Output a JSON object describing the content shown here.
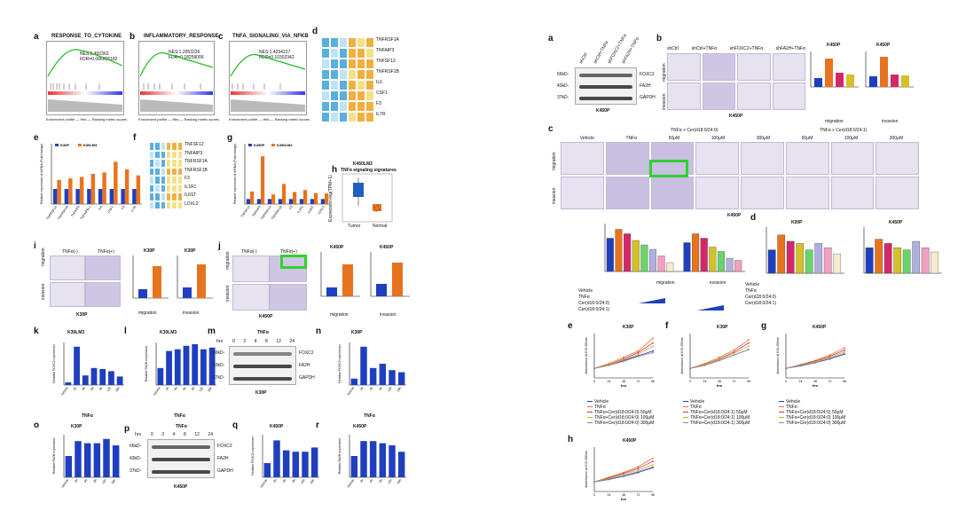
{
  "left": {
    "panels": {
      "a": {
        "label": "a",
        "title": "RESPONSE_TO_CYTOKINE",
        "nes": "NES:2.492363",
        "fdr": "FDR=0.006656182"
      },
      "b": {
        "label": "b",
        "title": "INFLAMMATORY_RESPONSE",
        "nes": "NES:1.2053226",
        "fdr": "FDR=0.18259006"
      },
      "c": {
        "label": "c",
        "title": "TNFA_SIGNALING_VIA_NFKB",
        "nes": "NES:1.4234217",
        "fdr": "FDR=0.10302342"
      },
      "d": {
        "label": "d",
        "genes": [
          "TNFRSF1A",
          "TNFAIP3",
          "TNFSF13",
          "TNFRSF1B",
          "IL6",
          "CSF1",
          "F3",
          "IL7R"
        ]
      },
      "e": {
        "label": "e",
        "legend": [
          "K30P",
          "K30LM3"
        ],
        "ylabel": "Relative expression of mRNA (Fold change)",
        "genes": [
          "TNFRSF1A",
          "TNFRSF1B",
          "TNFAIP3",
          "TNFAIP8L1",
          "IL6",
          "CSF1",
          "F3",
          "IL7R"
        ]
      },
      "f": {
        "label": "f",
        "genes": [
          "TNFSF12",
          "TNFAIP3",
          "TNFRSF1A",
          "TNFRSF1B",
          "F3",
          "IL1R1",
          "IL6ST",
          "LOXL2"
        ]
      },
      "g": {
        "label": "g",
        "legend": [
          "K450P",
          "K450LM2"
        ],
        "ylabel": "Relative expression of mRNA (Fold change)",
        "genes": [
          "TNFSF12",
          "TNFAIP3",
          "TNFRSF1A",
          "TNFRSF1B",
          "F3",
          "IL1R1",
          "IL6ST",
          "LOXL2"
        ]
      },
      "h": {
        "label": "h",
        "title": "K450LM2",
        "subtitle": "TNFα signaling signatures",
        "ylabel": "Expression-log(TPM+1)",
        "x": [
          "Tumor",
          "Normal"
        ]
      },
      "i": {
        "label": "i",
        "headers": [
          "TNFα(-)",
          "TNFα(+)"
        ],
        "rows": [
          "migration",
          "invasion"
        ],
        "caption": "K30P",
        "chart1": "K30P",
        "chart2": "K30P",
        "xcap1": "migration",
        "xcap2": "invasion",
        "ylabel": "Cell Number per Field",
        "x": [
          "TNFα(-)",
          "TNFα(+)"
        ]
      },
      "j": {
        "label": "j",
        "headers": [
          "TNFα(-)",
          "TNFα(+)"
        ],
        "rows": [
          "migration",
          "invasion"
        ],
        "caption": "K450P",
        "chart1": "K450P",
        "chart2": "K450P",
        "xcap1": "migration",
        "xcap2": "invasion",
        "ylabel": "Cell Number per Field",
        "x": [
          "TNFα(-)",
          "TNFα(+)"
        ]
      },
      "k": {
        "label": "k",
        "title": "K30LM3",
        "ylabel": "Relative FOXC2 expression",
        "xlabel": "TNFα",
        "x": [
          "Vehicle",
          "2h",
          "4h",
          "6h",
          "8h",
          "12h",
          "24h"
        ]
      },
      "l": {
        "label": "l",
        "title": "K30LM3",
        "ylabel": "Relative FA2H expression",
        "xlabel": "TNFα",
        "x": [
          "Vehicle",
          "2h",
          "4h",
          "6h",
          "8h",
          "12h",
          "24h"
        ]
      },
      "m": {
        "label": "m",
        "title": "TNFα",
        "hrs": "hrs",
        "times": [
          "0",
          "2",
          "4",
          "8",
          "12",
          "24"
        ],
        "mw": [
          "66kD-",
          "43kD-",
          "37kD-"
        ],
        "proteins": [
          "FOXC2",
          "FA2H",
          "GAPDH"
        ],
        "caption": "K30P"
      },
      "n": {
        "label": "n",
        "title": "K30P",
        "ylabel": "Relative FOXC2 expression",
        "xlabel": "TNFα",
        "x": [
          "Vehicle",
          "2h",
          "4h",
          "8h",
          "12h",
          "24h"
        ]
      },
      "o": {
        "label": "o",
        "title": "K30P",
        "ylabel": "Relative FA2H expression",
        "xlabel": "TNFα",
        "x": [
          "Vehicle",
          "2h",
          "4h",
          "8h",
          "12h",
          "24h"
        ]
      },
      "p": {
        "label": "p",
        "title": "TNFα",
        "hrs": "hrs",
        "times": [
          "0",
          "2",
          "4",
          "8",
          "12",
          "24"
        ],
        "mw": [
          "66kD-",
          "43kD-",
          "37kD-"
        ],
        "proteins": [
          "FOXC2",
          "FA2H",
          "GAPDH"
        ],
        "caption": "K450P"
      },
      "q": {
        "label": "q",
        "title": "K450P",
        "ylabel": "Relative FOXC2 expression",
        "xlabel": "TNFα",
        "x": [
          "Vehicle",
          "2h",
          "4h",
          "8h",
          "12h",
          "24h"
        ]
      },
      "r": {
        "label": "r",
        "title": "K450P",
        "ylabel": "Relative FA2H expression",
        "xlabel": "TNFα",
        "x": [
          "Vehicle",
          "2h",
          "4h",
          "8h",
          "12h",
          "24h"
        ]
      }
    },
    "gsea_xlabel": "Enrichment profile — Hits — Ranking metric scores"
  },
  "right": {
    "panels": {
      "a": {
        "label": "a",
        "lanes": [
          "shCtrl",
          "shCtrl+TNFα",
          "shFOXC2+TNFα",
          "shFA2H+TNFα"
        ],
        "mw": [
          "66kD-",
          "43kD-",
          "37kD-"
        ],
        "proteins": [
          "FOXC2",
          "FA2H",
          "GAPDH"
        ],
        "caption": "K450P"
      },
      "b": {
        "label": "b",
        "headers": [
          "shCtrl",
          "shCtrl+TNFα",
          "shFOXC2+TNFα",
          "shFA2H+TNFα"
        ],
        "rows": [
          "migration",
          "invasion"
        ],
        "caption": "K450P",
        "chart1": "K450P",
        "chart2": "K450P",
        "xcap1": "migration",
        "xcap2": "invasion",
        "ylabel": "Cell Number per Field"
      },
      "c": {
        "label": "c",
        "top_header": "TNFα + Cer(d18:0/24:0)",
        "top_header2": "TNFα + Cer(d18:0/24:1)",
        "headers": [
          "Vehicle",
          "TNFα",
          "50μM",
          "100μM",
          "300μM",
          "50μM",
          "100μM",
          "300μM"
        ],
        "rows": [
          "migration",
          "invasion"
        ],
        "caption": "K450P",
        "xcap1": "migration",
        "xcap2": "invasion",
        "ylabel": "Cell number per Field",
        "rowlabels": [
          "Vehicle",
          "TNFα",
          "Cer(d18:0/24:0)",
          "Cer(d18:0/24:1)"
        ]
      },
      "d": {
        "label": "d",
        "chart1": "K30P",
        "chart2": "K450P",
        "ylabel": "Number of colonies",
        "rowlabels": [
          "Vehicle",
          "TNFα",
          "Cer(d18:0/24:0)",
          "Cer(d18:0/24:1)"
        ]
      },
      "e": {
        "label": "e",
        "title": "K30P",
        "ylabel": "Absorbance at O.D.450nm",
        "xlabel": "hrs",
        "x": [
          "0",
          "24",
          "48",
          "72",
          "96"
        ],
        "legend": [
          "Vehicle",
          "TNFα",
          "TNFα+Cer(d18:0/24:0) 50μM",
          "TNFα+Cer(d18:0/24:0) 100μM",
          "TNFα+Cer(d18:0/24:0) 300μM"
        ]
      },
      "f": {
        "label": "f",
        "title": "K30P",
        "ylabel": "Absorbance at O.D.450nm",
        "xlabel": "hrs",
        "x": [
          "0",
          "24",
          "48",
          "72",
          "96"
        ],
        "legend": [
          "Vehicle",
          "TNFα",
          "TNFα+Cer(d18:0/24:1) 50μM",
          "TNFα+Cer(d18:0/24:1) 100μM",
          "TNFα+Cer(d18:0/24:1) 300μM"
        ]
      },
      "g": {
        "label": "g",
        "title": "K450P",
        "ylabel": "Absorbance at O.D.450nm",
        "xlabel": "hrs",
        "x": [
          "0",
          "24",
          "48",
          "72",
          "96"
        ],
        "legend": [
          "Vehicle",
          "TNFα",
          "TNFα+Cer(d18:0/24:0) 50μM",
          "TNFα+Cer(d18:0/24:0) 100μM",
          "TNFα+Cer(d18:0/24:0) 300μM"
        ]
      },
      "h": {
        "label": "h",
        "title": "K450P",
        "ylabel": "Absorbance at O.D.450nm",
        "xlabel": "hrs",
        "x": [
          "0",
          "24",
          "48",
          "72",
          "96"
        ]
      }
    }
  },
  "colors": {
    "blue": "#1f3fbf",
    "orange": "#e8731f",
    "green": "#2fd22f",
    "gsea": "#22bb22",
    "heat_low": "#4aa3d8",
    "heat_high": "#f0a030"
  },
  "chart_data": [
    {
      "type": "bar",
      "panel": "left-e",
      "categories": [
        "TNFRSF1A",
        "TNFRSF1B",
        "TNFAIP3",
        "TNFAIP8L1",
        "IL6",
        "CSF1",
        "F3",
        "IL7R"
      ],
      "series": [
        {
          "name": "K30P",
          "values": [
            1,
            1,
            1,
            1,
            1,
            1,
            1,
            1
          ]
        },
        {
          "name": "K30LM3",
          "values": [
            1.6,
            1.7,
            1.8,
            2.0,
            2.1,
            2.8,
            2.3,
            1.9
          ]
        }
      ],
      "ylim": [
        0,
        4
      ]
    },
    {
      "type": "bar",
      "panel": "left-g",
      "categories": [
        "TNFSF12",
        "TNFAIP3",
        "TNFRSF1A",
        "TNFRSF1B",
        "F3",
        "IL1R1",
        "IL6ST",
        "LOXL2"
      ],
      "series": [
        {
          "name": "K450P",
          "values": [
            1,
            1,
            1,
            1,
            1,
            1,
            1,
            1
          ]
        },
        {
          "name": "K450LM2",
          "values": [
            2.5,
            9.5,
            1.9,
            4.0,
            2.4,
            2.8,
            2.2,
            2.1
          ]
        }
      ],
      "ylim": [
        0,
        12
      ]
    },
    {
      "type": "bar",
      "panel": "left-k",
      "categories": [
        "Vehicle",
        "2h",
        "4h",
        "6h",
        "8h",
        "12h",
        "24h"
      ],
      "values": [
        0.25,
        3.6,
        0.9,
        1.6,
        1.5,
        1.3,
        0.8
      ],
      "ylim": [
        0,
        4
      ]
    },
    {
      "type": "bar",
      "panel": "left-l",
      "categories": [
        "Vehicle",
        "2h",
        "4h",
        "6h",
        "8h",
        "12h",
        "24h"
      ],
      "values": [
        1.0,
        2.0,
        2.1,
        2.3,
        2.4,
        2.1,
        2.2
      ],
      "ylim": [
        0,
        2.5
      ]
    },
    {
      "type": "bar",
      "panel": "left-n",
      "categories": [
        "Vehicle",
        "2h",
        "4h",
        "8h",
        "12h",
        "24h"
      ],
      "values": [
        0.3,
        1.8,
        0.8,
        1.0,
        0.7,
        0.6
      ],
      "ylim": [
        0,
        2
      ]
    },
    {
      "type": "bar",
      "panel": "left-o",
      "categories": [
        "Vehicle",
        "2h",
        "4h",
        "8h",
        "12h",
        "24h"
      ],
      "values": [
        1.0,
        1.7,
        1.6,
        1.6,
        1.8,
        1.5
      ],
      "ylim": [
        0,
        2
      ]
    },
    {
      "type": "bar",
      "panel": "left-q",
      "categories": [
        "Vehicle",
        "2h",
        "4h",
        "8h",
        "12h",
        "24h"
      ],
      "values": [
        1.0,
        2.6,
        1.9,
        1.8,
        1.8,
        2.1
      ],
      "ylim": [
        0,
        3
      ]
    },
    {
      "type": "bar",
      "panel": "left-r",
      "categories": [
        "Vehicle",
        "2h",
        "4h",
        "8h",
        "12h",
        "24h"
      ],
      "values": [
        1.0,
        1.7,
        1.7,
        1.6,
        1.5,
        1.2
      ],
      "ylim": [
        0,
        2
      ]
    },
    {
      "type": "line",
      "panel": "right-e",
      "x": [
        0,
        24,
        48,
        72,
        96
      ],
      "series": [
        {
          "name": "Vehicle",
          "values": [
            0.3,
            0.4,
            0.55,
            0.7,
            0.85
          ]
        },
        {
          "name": "TNFα",
          "values": [
            0.3,
            0.45,
            0.65,
            0.85,
            1.25
          ]
        },
        {
          "name": "TNFα+Cer(d18:0/24:0) 50μM",
          "values": [
            0.3,
            0.42,
            0.6,
            0.8,
            1.1
          ]
        },
        {
          "name": "TNFα+Cer(d18:0/24:0) 100μM",
          "values": [
            0.3,
            0.41,
            0.57,
            0.75,
            1.0
          ]
        },
        {
          "name": "TNFα+Cer(d18:0/24:0) 300μM",
          "values": [
            0.3,
            0.4,
            0.52,
            0.68,
            0.8
          ]
        }
      ]
    },
    {
      "type": "line",
      "panel": "right-f",
      "x": [
        0,
        24,
        48,
        72,
        96
      ],
      "series": [
        {
          "name": "Vehicle",
          "values": [
            0.3,
            0.4,
            0.55,
            0.72,
            0.9
          ]
        },
        {
          "name": "TNFα",
          "values": [
            0.3,
            0.45,
            0.65,
            0.88,
            1.2
          ]
        },
        {
          "name": "TNFα+Cer(d18:0/24:1) 50μM",
          "values": [
            0.3,
            0.43,
            0.6,
            0.82,
            1.1
          ]
        },
        {
          "name": "TNFα+Cer(d18:0/24:1) 100μM",
          "values": [
            0.3,
            0.42,
            0.58,
            0.78,
            1.0
          ]
        },
        {
          "name": "TNFα+Cer(d18:0/24:1) 300μM",
          "values": [
            0.3,
            0.4,
            0.55,
            0.72,
            0.9
          ]
        }
      ]
    },
    {
      "type": "line",
      "panel": "right-g",
      "x": [
        0,
        24,
        48,
        72,
        96
      ],
      "series": [
        {
          "name": "Vehicle",
          "values": [
            0.3,
            0.38,
            0.48,
            0.6,
            0.75
          ]
        },
        {
          "name": "TNFα",
          "values": [
            0.3,
            0.42,
            0.55,
            0.72,
            0.95
          ]
        },
        {
          "name": "TNFα+Cer(d18:0/24:0) 50μM",
          "values": [
            0.3,
            0.41,
            0.53,
            0.68,
            0.88
          ]
        },
        {
          "name": "TNFα+Cer(d18:0/24:0) 100μM",
          "values": [
            0.3,
            0.4,
            0.51,
            0.65,
            0.82
          ]
        },
        {
          "name": "TNFα+Cer(d18:0/24:0) 300μM",
          "values": [
            0.3,
            0.39,
            0.49,
            0.62,
            0.77
          ]
        }
      ]
    },
    {
      "type": "line",
      "panel": "right-h",
      "x": [
        0,
        24,
        48,
        72,
        96
      ],
      "series": [
        {
          "values": [
            0.3,
            0.38,
            0.48,
            0.6,
            0.75
          ]
        },
        {
          "values": [
            0.3,
            0.45,
            0.6,
            0.78,
            1.05
          ]
        },
        {
          "values": [
            0.3,
            0.43,
            0.57,
            0.73,
            0.95
          ]
        },
        {
          "values": [
            0.3,
            0.41,
            0.54,
            0.68,
            0.85
          ]
        },
        {
          "values": [
            0.3,
            0.39,
            0.5,
            0.63,
            0.78
          ]
        }
      ]
    }
  ]
}
